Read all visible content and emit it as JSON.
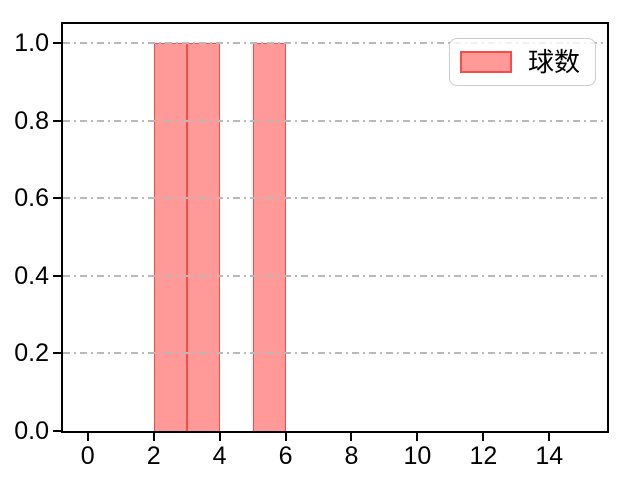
{
  "chart_data": {
    "type": "bar",
    "subtype": "histogram",
    "title": "",
    "xlabel": "",
    "ylabel": "",
    "xlim": [
      -0.75,
      15.75
    ],
    "ylim": [
      0,
      1.05
    ],
    "xticks": [
      0,
      2,
      4,
      6,
      8,
      10,
      12,
      14
    ],
    "yticks": [
      {
        "value": 0.0,
        "label": "0.0"
      },
      {
        "value": 0.2,
        "label": "0.2"
      },
      {
        "value": 0.4,
        "label": "0.4"
      },
      {
        "value": 0.6,
        "label": "0.6"
      },
      {
        "value": 0.8,
        "label": "0.8"
      },
      {
        "value": 1.0,
        "label": "1.0"
      }
    ],
    "grid": {
      "axis": "y",
      "style": "dash-dot",
      "color": "#b9b9b9"
    },
    "bars": [
      {
        "x0": 2,
        "x1": 3,
        "height": 1.0
      },
      {
        "x0": 3,
        "x1": 4,
        "height": 1.0
      },
      {
        "x0": 5,
        "x1": 6,
        "height": 1.0
      }
    ],
    "legend": {
      "position": "upper right",
      "entries": [
        {
          "label": "球数",
          "fill": "#ff9a99",
          "edge": "#f94c4a"
        }
      ]
    },
    "colors": {
      "bar_fill": "#ff9a99",
      "bar_edge": "#f94c4a",
      "axis": "#000000",
      "tick_text": "#000000",
      "grid": "#b9b9b9",
      "legend_border": "#cccccc",
      "background": "#ffffff"
    }
  }
}
